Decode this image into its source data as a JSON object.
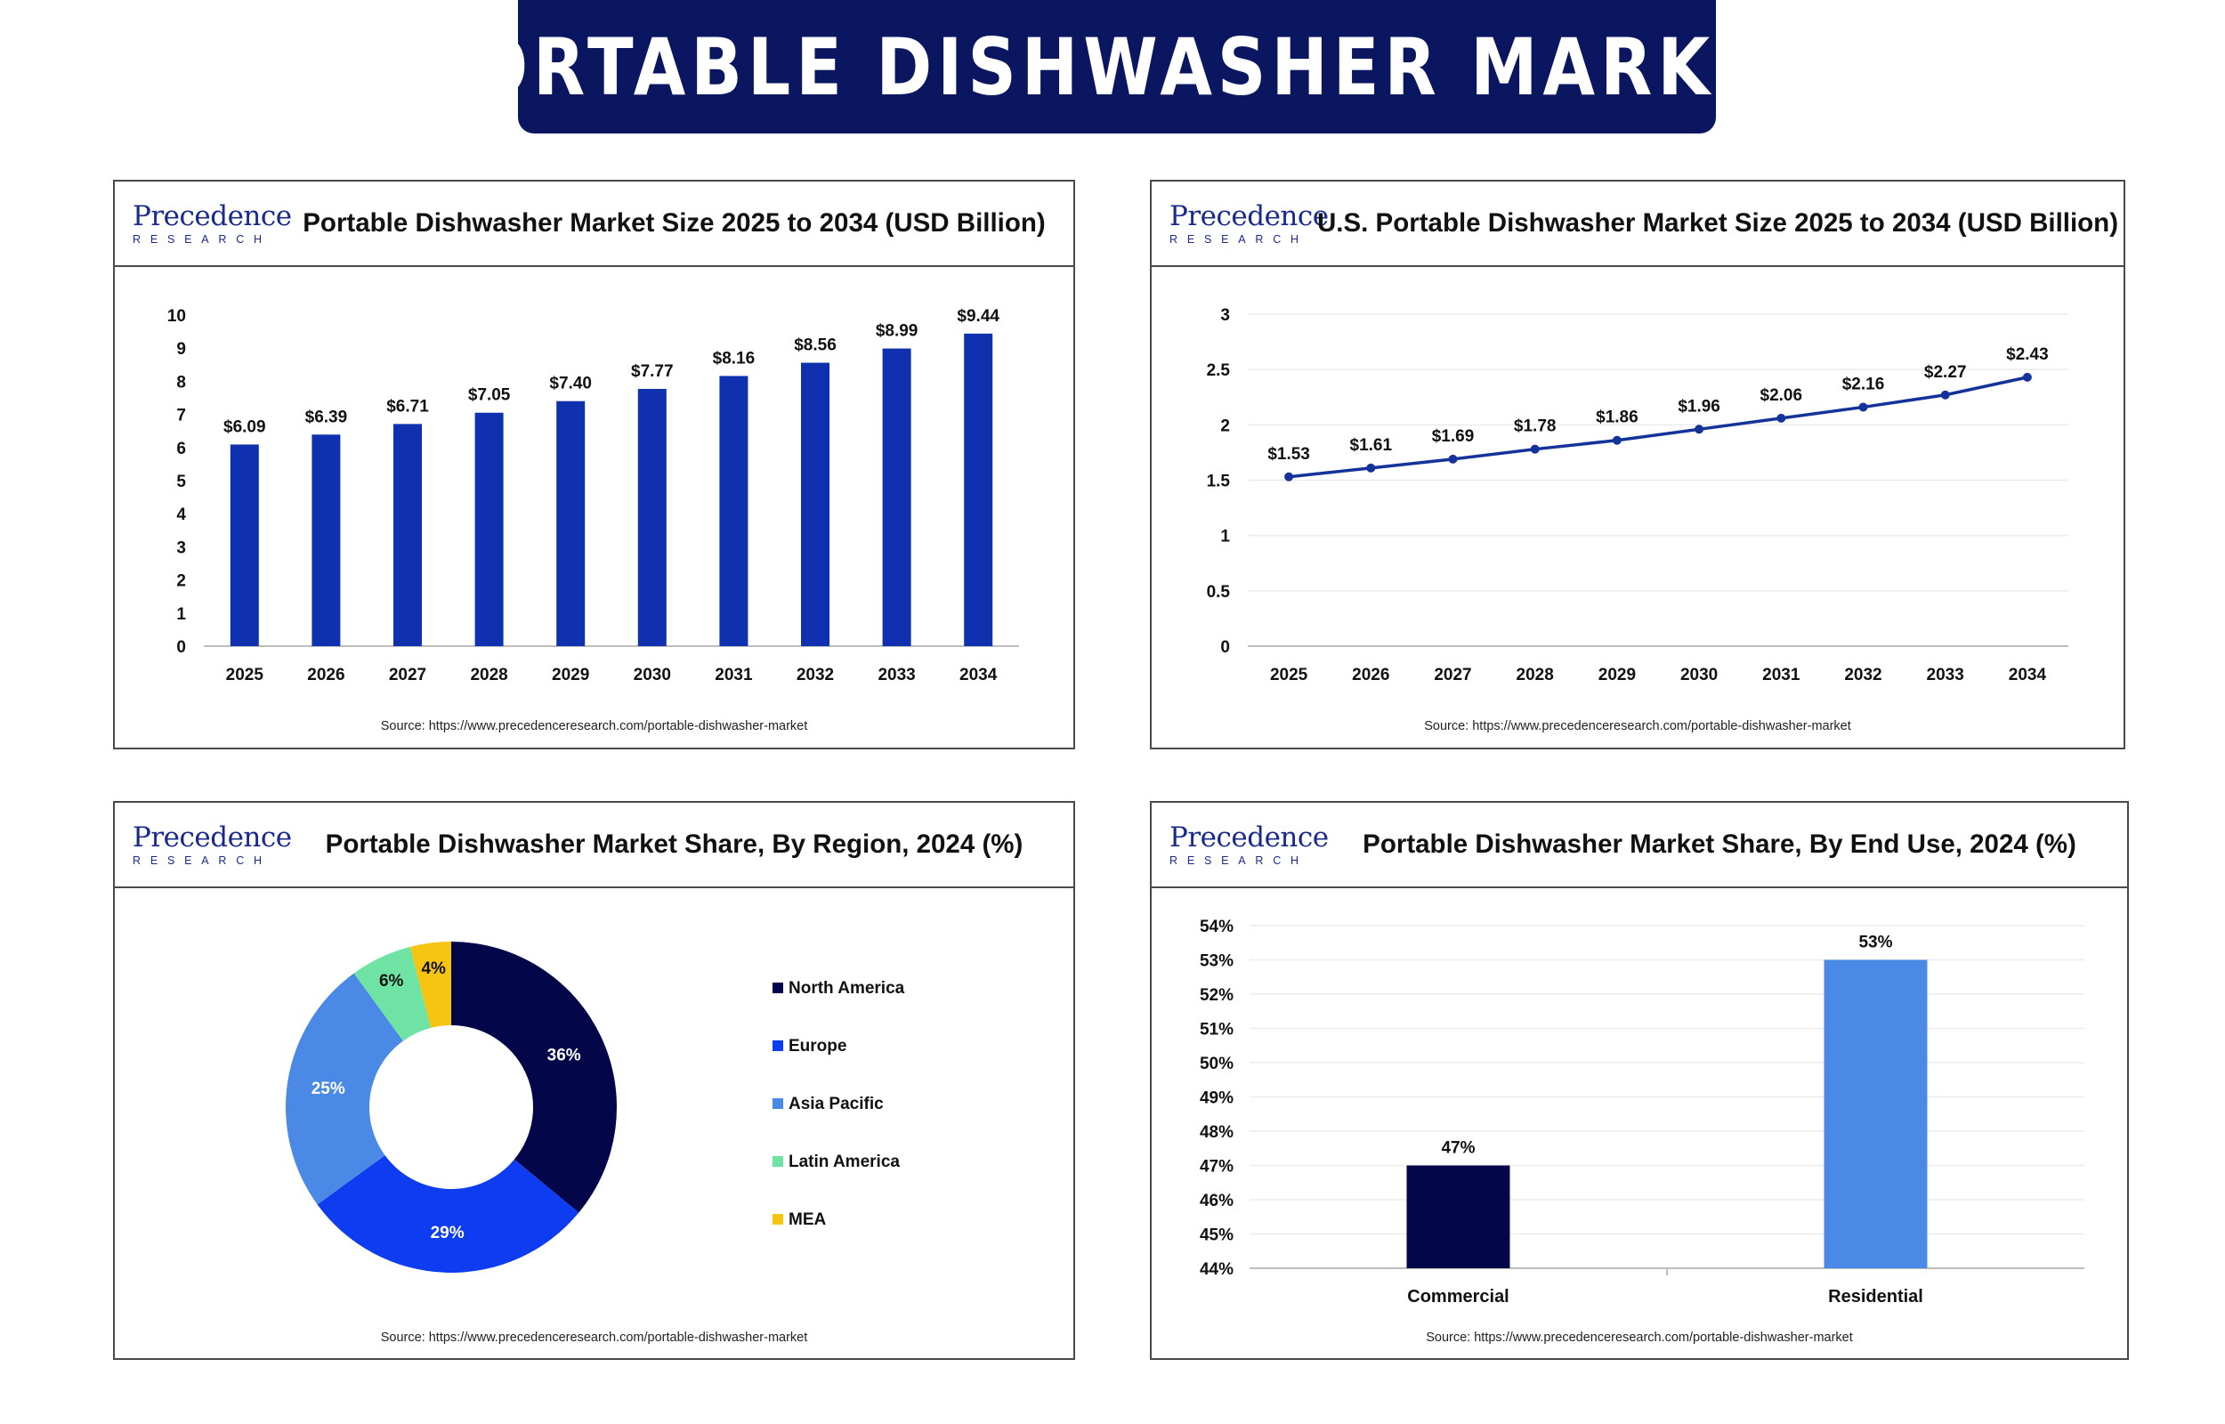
{
  "banner": {
    "title": "PORTABLE DISHWASHER MARKET"
  },
  "logo": {
    "word": "Precedence",
    "sub": "RESEARCH"
  },
  "source": "Source: https://www.precedenceresearch.com/portable-dishwasher-market",
  "colors": {
    "navy": "#0b1660",
    "bar_blue": "#0f31b0",
    "line_blue": "#13339a",
    "na": "#03074a",
    "europe": "#0e3cf0",
    "apac": "#4a8ae6",
    "latam": "#6ee3a3",
    "mea": "#f5c511",
    "commercial": "#03074a",
    "residential": "#4a8ae6"
  },
  "charts": {
    "global": {
      "title": "Portable Dishwasher Market Size 2025 to 2034 (USD Billion)",
      "chart_data": {
        "type": "bar",
        "categories": [
          "2025",
          "2026",
          "2027",
          "2028",
          "2029",
          "2030",
          "2031",
          "2032",
          "2033",
          "2034"
        ],
        "values": [
          6.09,
          6.39,
          6.71,
          7.05,
          7.4,
          7.77,
          8.16,
          8.56,
          8.99,
          9.44
        ],
        "labels": [
          "$6.09",
          "$6.39",
          "$6.71",
          "$7.05",
          "$7.40",
          "$7.77",
          "$8.16",
          "$8.56",
          "$8.99",
          "$9.44"
        ],
        "yticks": [
          "0",
          "1",
          "2",
          "3",
          "4",
          "5",
          "6",
          "7",
          "8",
          "9",
          "10"
        ],
        "ylim": [
          0,
          10
        ],
        "grid": false
      }
    },
    "us": {
      "title": "U.S. Portable Dishwasher Market Size 2025 to 2034 (USD Billion)",
      "chart_data": {
        "type": "line",
        "categories": [
          "2025",
          "2026",
          "2027",
          "2028",
          "2029",
          "2030",
          "2031",
          "2032",
          "2033",
          "2034"
        ],
        "values": [
          1.53,
          1.61,
          1.69,
          1.78,
          1.86,
          1.96,
          2.06,
          2.16,
          2.27,
          2.43
        ],
        "labels": [
          "$1.53",
          "$1.61",
          "$1.69",
          "$1.78",
          "$1.86",
          "$1.96",
          "$2.06",
          "$2.16",
          "$2.27",
          "$2.43"
        ],
        "yticks": [
          "0",
          "0.5",
          "1",
          "1.5",
          "2",
          "2.5",
          "3"
        ],
        "ylim": [
          0,
          3
        ],
        "grid": true
      }
    },
    "region": {
      "title": "Portable Dishwasher Market Share, By Region, 2024 (%)",
      "chart_data": {
        "type": "pie",
        "slices": [
          {
            "name": "North America",
            "value": 36,
            "label": "36%"
          },
          {
            "name": "Europe",
            "value": 29,
            "label": "29%"
          },
          {
            "name": "Asia Pacific",
            "value": 25,
            "label": "25%"
          },
          {
            "name": "Latin America",
            "value": 6,
            "label": "6%"
          },
          {
            "name": "MEA",
            "value": 4,
            "label": "4%"
          }
        ],
        "legend_position": "right"
      }
    },
    "enduse": {
      "title": "Portable Dishwasher Market Share, By End Use, 2024 (%)",
      "chart_data": {
        "type": "bar",
        "categories": [
          "Commercial",
          "Residential"
        ],
        "values": [
          47,
          53
        ],
        "labels": [
          "47%",
          "53%"
        ],
        "yticks": [
          "44%",
          "45%",
          "46%",
          "47%",
          "48%",
          "49%",
          "50%",
          "51%",
          "52%",
          "53%",
          "54%"
        ],
        "ylim": [
          44,
          54
        ],
        "grid": true
      }
    }
  }
}
